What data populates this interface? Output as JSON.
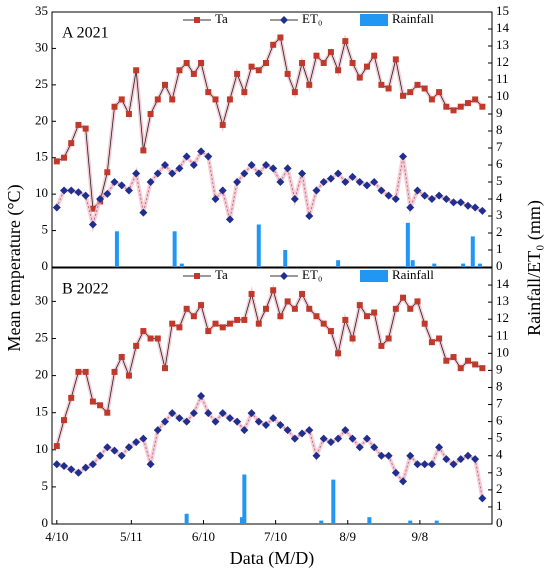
{
  "ylabel": "Mean temperature (°C)",
  "y2label": "Rainfall/ET₀ (mm)",
  "xlabel": "Data (M/D)",
  "chart_data": [
    {
      "type": "line",
      "title": "A 2021",
      "x": [
        0,
        3,
        6,
        9,
        12,
        15,
        18,
        21,
        24,
        27,
        30,
        33,
        36,
        39,
        42,
        45,
        48,
        51,
        54,
        57,
        60,
        63,
        66,
        69,
        72,
        75,
        78,
        81,
        84,
        87,
        90,
        93,
        96,
        99,
        102,
        105,
        108,
        111,
        114,
        117,
        120,
        123,
        126,
        129,
        132,
        135,
        138,
        141,
        144,
        147,
        150,
        153,
        156,
        159,
        162,
        165,
        168,
        171,
        174,
        177
      ],
      "xlim": [
        -2,
        181
      ],
      "ylim": [
        0,
        35
      ],
      "yticks": [
        0,
        5,
        10,
        15,
        20,
        25,
        30,
        35
      ],
      "y2lim": [
        0,
        15
      ],
      "y2ticks": [
        0,
        1,
        2,
        3,
        4,
        5,
        6,
        7,
        8,
        9,
        10,
        11,
        12,
        13,
        14,
        15
      ],
      "series": [
        {
          "name": "Ta",
          "color": "#c0392b",
          "values": [
            14.5,
            15,
            17,
            19.5,
            19,
            8,
            9,
            13,
            22,
            23,
            21,
            27,
            16,
            21,
            23,
            25,
            23,
            27,
            28,
            26.5,
            28,
            24,
            23,
            19.5,
            23,
            26.5,
            24,
            27.5,
            27,
            28,
            30.5,
            31.5,
            26.5,
            24,
            28,
            25,
            29,
            28,
            29.5,
            27,
            31,
            28,
            26,
            27.5,
            29,
            25,
            24.5,
            28.5,
            23.5,
            24,
            25,
            24.5,
            23,
            24,
            22,
            21.5,
            22,
            22.5,
            23,
            22
          ]
        },
        {
          "name": "ET₀",
          "color": "#1f2f8f",
          "axis": "y2",
          "values": [
            3.5,
            4.5,
            4.5,
            4.4,
            4.2,
            2.5,
            4,
            4.3,
            5,
            4.8,
            4.5,
            5.5,
            3.2,
            5,
            5.5,
            6,
            5.5,
            5.8,
            6.5,
            6,
            6.8,
            6.5,
            4,
            4.5,
            2.8,
            5,
            5.5,
            6,
            5.5,
            6,
            5.8,
            5,
            5.8,
            4,
            5.5,
            3,
            4.5,
            5,
            5.2,
            5.5,
            5,
            5.3,
            5,
            4.8,
            5,
            4.5,
            4.2,
            4,
            6.5,
            3.5,
            4.5,
            4.2,
            4,
            4.2,
            4,
            3.8,
            3.8,
            3.6,
            3.5,
            3.3
          ]
        },
        {
          "name": "Rainfall",
          "type": "bar",
          "color": "#2196f3",
          "axis": "y2",
          "x": [
            25,
            49,
            52,
            84,
            95,
            117,
            146,
            148,
            157,
            169,
            173,
            176
          ],
          "values": [
            2.1,
            2.1,
            0.2,
            2.5,
            1,
            0.4,
            2.6,
            0.4,
            0.2,
            0.2,
            1.8,
            0.2
          ]
        }
      ]
    },
    {
      "type": "line",
      "title": "B 2022",
      "x": [
        0,
        3,
        6,
        9,
        12,
        15,
        18,
        21,
        24,
        27,
        30,
        33,
        36,
        39,
        42,
        45,
        48,
        51,
        54,
        57,
        60,
        63,
        66,
        69,
        72,
        75,
        78,
        81,
        84,
        87,
        90,
        93,
        96,
        99,
        102,
        105,
        108,
        111,
        114,
        117,
        120,
        123,
        126,
        129,
        132,
        135,
        138,
        141,
        144,
        147,
        150,
        153,
        156,
        159,
        162,
        165,
        168,
        171,
        174,
        177
      ],
      "xlim": [
        -2,
        181
      ],
      "xticks": [
        {
          "value": 0,
          "label": "4/10"
        },
        {
          "value": 31,
          "label": "5/11"
        },
        {
          "value": 61,
          "label": "6/10"
        },
        {
          "value": 91,
          "label": "7/10"
        },
        {
          "value": 121,
          "label": "8/9"
        },
        {
          "value": 151,
          "label": "9/8"
        }
      ],
      "ylim": [
        0,
        34.5
      ],
      "yticks": [
        0,
        5,
        10,
        15,
        20,
        25,
        30
      ],
      "y2lim": [
        0,
        15
      ],
      "y2ticks": [
        0,
        1,
        2,
        3,
        4,
        5,
        6,
        7,
        8,
        9,
        10,
        11,
        12,
        13,
        14
      ],
      "series": [
        {
          "name": "Ta",
          "color": "#c0392b",
          "values": [
            10.5,
            14,
            17,
            20.5,
            20.5,
            16.5,
            16,
            15,
            20.5,
            22.5,
            20,
            24,
            26,
            25,
            25,
            21,
            27,
            26.5,
            29,
            28,
            29.5,
            26,
            27,
            26.5,
            27,
            27.5,
            27.5,
            31,
            27,
            29,
            31.5,
            28,
            30,
            29,
            31,
            29,
            28,
            27,
            26,
            23,
            27.5,
            25,
            29.5,
            28,
            28.5,
            24,
            25,
            29,
            30.5,
            29,
            30,
            27,
            24.5,
            25,
            22,
            22.5,
            21,
            22,
            21.5,
            21
          ]
        },
        {
          "name": "ET₀",
          "color": "#1f2f8f",
          "axis": "y2",
          "values": [
            3.5,
            3.4,
            3.2,
            3,
            3.3,
            3.5,
            4,
            4.5,
            4.3,
            4,
            4.5,
            4.8,
            5,
            3.5,
            5.5,
            6,
            6.5,
            6.2,
            6,
            6.5,
            7.5,
            6.5,
            6,
            6.5,
            6.2,
            6,
            5.5,
            6.5,
            6,
            5.8,
            6.2,
            5.8,
            5.5,
            5,
            5.3,
            5.5,
            4,
            5,
            4.8,
            5,
            5.5,
            5,
            4.5,
            5,
            4.5,
            4,
            4,
            3,
            2.5,
            4,
            3.5,
            3.5,
            3.5,
            4.5,
            3.8,
            3.5,
            3.8,
            4,
            3.8,
            1.5
          ]
        },
        {
          "name": "Rainfall",
          "type": "bar",
          "color": "#2196f3",
          "axis": "y2",
          "x": [
            54,
            77,
            78,
            110,
            115,
            130,
            147,
            158
          ],
          "values": [
            0.6,
            0.4,
            2.9,
            0.2,
            2.6,
            0.4,
            0.2,
            0.2
          ]
        }
      ]
    }
  ]
}
